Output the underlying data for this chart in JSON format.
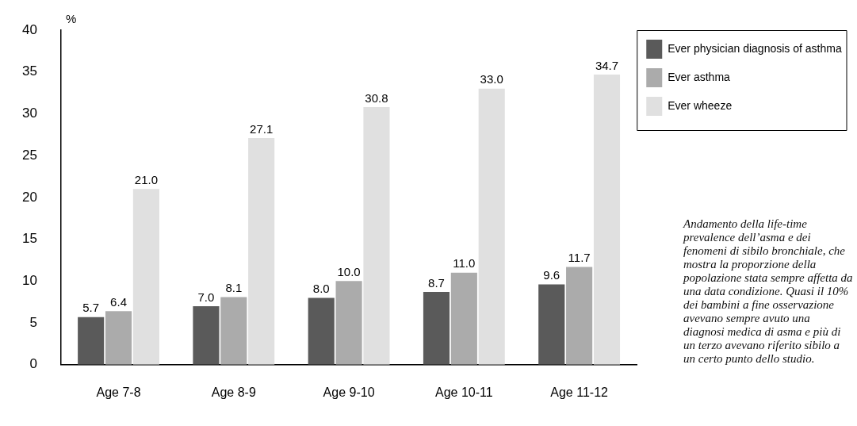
{
  "chart_data": {
    "type": "bar",
    "ylabel": "%",
    "categories": [
      "Age 7-8",
      "Age 8-9",
      "Age 9-10",
      "Age 10-11",
      "Age 11-12"
    ],
    "series": [
      {
        "name": "Ever physician diagnosis of asthma",
        "color": "#5a5a5a",
        "values": [
          5.7,
          7.0,
          8.0,
          8.7,
          9.6
        ],
        "value_labels": [
          "5.7",
          "7.0",
          "8.0",
          "8.7",
          "9.6"
        ]
      },
      {
        "name": "Ever asthma",
        "color": "#ababab",
        "values": [
          6.4,
          8.1,
          10.0,
          11.0,
          11.7
        ],
        "value_labels": [
          "6.4",
          "8.1",
          "10.0",
          "11.0",
          "11.7"
        ]
      },
      {
        "name": "Ever wheeze",
        "color": "#e0e0e0",
        "values": [
          21.0,
          27.1,
          30.8,
          33.0,
          34.7
        ],
        "value_labels": [
          "21.0",
          "27.1",
          "30.8",
          "33.0",
          "34.7"
        ]
      }
    ],
    "ylim": [
      0,
      40
    ],
    "yticks": [
      0,
      5,
      10,
      15,
      20,
      25,
      30,
      35,
      40
    ],
    "grid": false,
    "legend": "top right",
    "annotations": [
      "Andamento della life-time prevalence dell’asma e dei fenomeni di sibilo bronchiale, che mostra la proporzione della popolazione stata sempre affetta da una data condizione. Quasi il 10% dei bambini a fine osservazione avevano sempre avuto una diagnosi medica di asma e più di un terzo avevano riferito sibilo a un certo punto dello studio."
    ]
  }
}
